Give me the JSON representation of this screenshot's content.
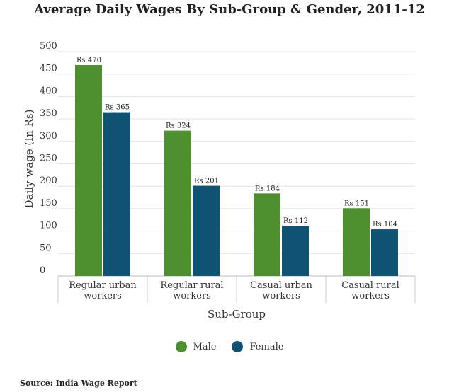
{
  "chart_data": {
    "type": "bar",
    "title": "Average Daily Wages By Sub-Group & Gender, 2011-12",
    "xlabel": "Sub-Group",
    "ylabel": "Daily wage (In Rs)",
    "ylim": [
      0,
      500
    ],
    "yticks": [
      0,
      50,
      100,
      150,
      200,
      250,
      300,
      350,
      400,
      450,
      500
    ],
    "categories": [
      [
        "Regular urban",
        "workers"
      ],
      [
        "Regular rural",
        "workers"
      ],
      [
        "Casual urban",
        "workers"
      ],
      [
        "Casual rural",
        "workers"
      ]
    ],
    "series": [
      {
        "name": "Male",
        "color": "#4e8f2f",
        "values": [
          470,
          324,
          184,
          151
        ],
        "labels": [
          "Rs 470",
          "Rs 324",
          "Rs 184",
          "Rs 151"
        ]
      },
      {
        "name": "Female",
        "color": "#0f5272",
        "values": [
          365,
          201,
          112,
          104
        ],
        "labels": [
          "Rs 365",
          "Rs 201",
          "Rs 112",
          "Rs 104"
        ]
      }
    ],
    "grid": true,
    "legend_position": "bottom-center"
  },
  "source": "Source: India Wage Report"
}
